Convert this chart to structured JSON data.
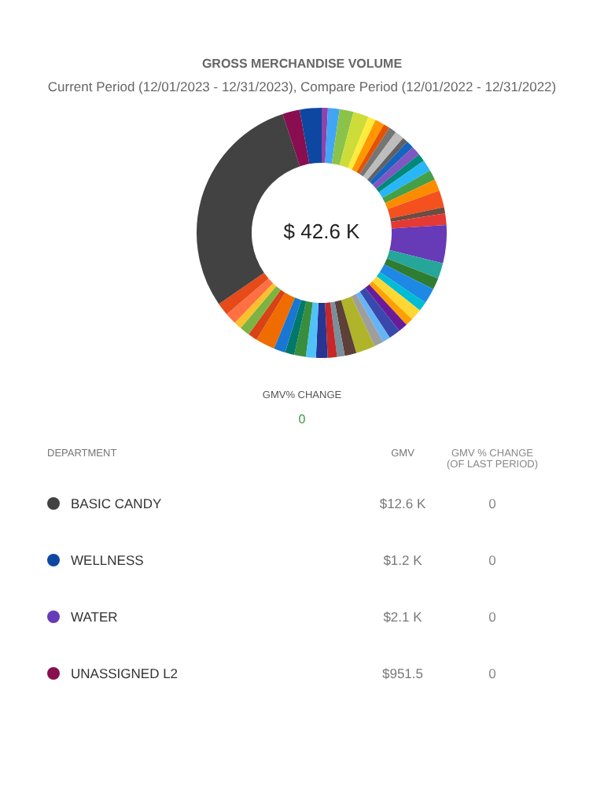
{
  "chart_data": {
    "type": "donut",
    "title": "GROSS MERCHANDISE VOLUME",
    "subtitle": "Current Period (12/01/2023 - 12/31/2023), Compare Period (12/01/2022 - 12/31/2022)",
    "categories": [
      null,
      null,
      null,
      null,
      null,
      null,
      null,
      null,
      null,
      null,
      null,
      null,
      null,
      null,
      null,
      null,
      null,
      null,
      null,
      "WATER",
      null,
      null,
      null,
      null,
      null,
      null,
      null,
      null,
      null,
      null,
      null,
      null,
      null,
      null,
      null,
      null,
      null,
      null,
      null,
      null,
      null,
      null,
      null,
      null,
      null,
      "BASIC CANDY",
      "UNASSIGNED L2",
      "WELLNESS"
    ],
    "values": [
      341,
      639,
      767,
      852,
      426,
      511,
      341,
      426,
      511,
      298,
      426,
      511,
      426,
      639,
      554,
      639,
      937,
      341,
      639,
      2100,
      852,
      639,
      852,
      511,
      639,
      426,
      511,
      639,
      426,
      511,
      1065,
      639,
      426,
      511,
      639,
      554,
      639,
      511,
      639,
      1065,
      511,
      554,
      426,
      639,
      700,
      12600,
      951.5,
      1200
    ],
    "colors": [
      "#8e44ad",
      "#42a5f5",
      "#8bc34a",
      "#cddc39",
      "#ffeb3b",
      "#ff9800",
      "#e65100",
      "#757575",
      "#bdbdbd",
      "#616161",
      "#1565c0",
      "#7e57c2",
      "#00897b",
      "#29b6f6",
      "#43a047",
      "#fb8c00",
      "#f4511e",
      "#6d4c41",
      "#e53935",
      "#673ab7",
      "#26a69a",
      "#2e7d32",
      "#1e88e5",
      "#00bcd4",
      "#fdd835",
      "#ffa000",
      "#6a1b9a",
      "#3949ab",
      "#64b5f6",
      "#9e9e9e",
      "#afb42b",
      "#5d4037",
      "#78909c",
      "#c62828",
      "#283593",
      "#4fc3f7",
      "#388e3c",
      "#00796b",
      "#1976d2",
      "#ef6c00",
      "#d84315",
      "#7cb342",
      "#fbc02d",
      "#ff7043",
      "#e64a19",
      "#424242",
      "#880e4f",
      "#0d47a1"
    ],
    "value_labels": [
      null,
      null,
      null,
      null,
      null,
      null,
      null,
      null,
      null,
      null,
      null,
      null,
      null,
      null,
      null,
      null,
      null,
      null,
      null,
      "$2.1 K",
      null,
      null,
      null,
      null,
      null,
      null,
      null,
      null,
      null,
      null,
      null,
      null,
      null,
      null,
      null,
      null,
      null,
      null,
      null,
      null,
      null,
      null,
      null,
      null,
      null,
      "$12.6 K",
      "$951.5",
      "$1.2 K"
    ],
    "annotations": [
      "$ 42.6 K",
      "GMV% CHANGE",
      "0",
      "DEPARTMENT",
      "GMV",
      "GMV % CHANGE (OF LAST PERIOD)",
      "0",
      "0",
      "0",
      "0"
    ],
    "legend": "bottom"
  }
}
